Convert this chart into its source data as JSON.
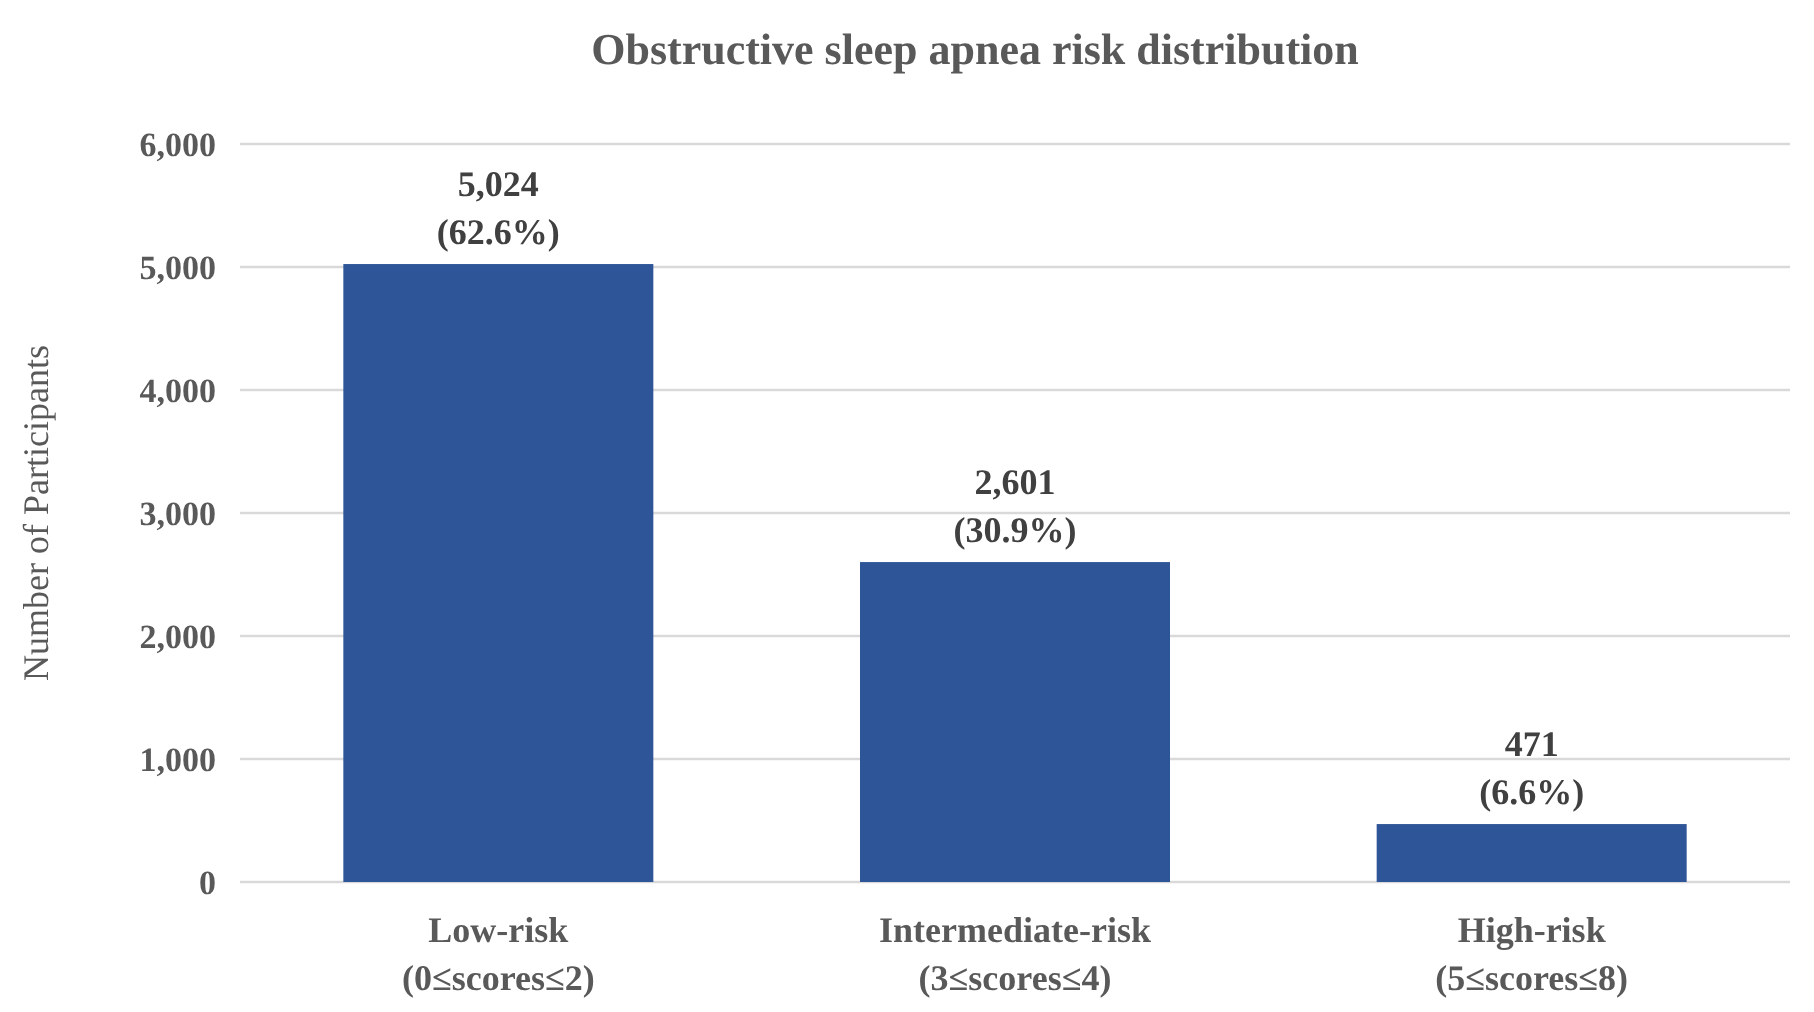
{
  "chart_data": {
    "type": "bar",
    "title": "Obstructive sleep apnea risk distribution",
    "ylabel": "Number of Participants",
    "categories": [
      "Low-risk\n(0≤scores≤2)",
      "Intermediate-risk\n(3≤scores≤4)",
      "High-risk\n(5≤scores≤8)"
    ],
    "values": [
      5024,
      2601,
      471
    ],
    "color": "#2e5597",
    "value_labels": [
      "5,024\n(62.6%)",
      "2,601\n(30.9%)",
      "471\n(6.6%)"
    ],
    "ylim": [
      0,
      6000
    ],
    "yticks": [
      {
        "value": 0,
        "label": "0"
      },
      {
        "value": 1000,
        "label": "1,000"
      },
      {
        "value": 2000,
        "label": "2,000"
      },
      {
        "value": 3000,
        "label": "3,000"
      },
      {
        "value": 4000,
        "label": "4,000"
      },
      {
        "value": 5000,
        "label": "5,000"
      },
      {
        "value": 6000,
        "label": "6,000"
      }
    ],
    "grid": "y"
  }
}
